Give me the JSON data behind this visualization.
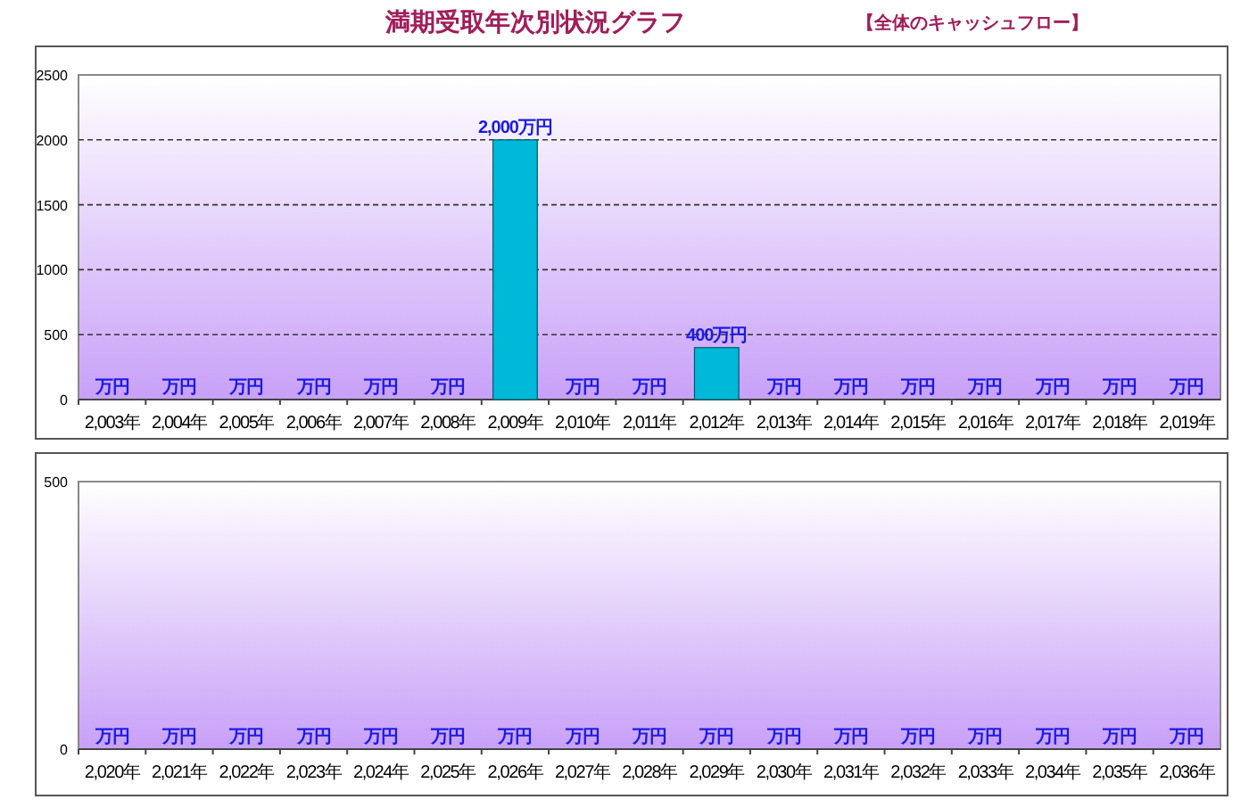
{
  "chart_data": [
    {
      "type": "bar",
      "title": "満期受取年次別状況グラフ",
      "subtitle": "【全体のキャッシュフロー】",
      "categories": [
        "2,003年",
        "2,004年",
        "2,005年",
        "2,006年",
        "2,007年",
        "2,008年",
        "2,009年",
        "2,010年",
        "2,011年",
        "2,012年",
        "2,013年",
        "2,014年",
        "2,015年",
        "2,016年",
        "2,017年",
        "2,018年",
        "2,019年"
      ],
      "values": [
        0,
        0,
        0,
        0,
        0,
        0,
        2000,
        0,
        0,
        400,
        0,
        0,
        0,
        0,
        0,
        0,
        0
      ],
      "value_labels": [
        "万円",
        "万円",
        "万円",
        "万円",
        "万円",
        "万円",
        "2,000万円",
        "万円",
        "万円",
        "400万円",
        "万円",
        "万円",
        "万円",
        "万円",
        "万円",
        "万円",
        "万円"
      ],
      "color": "#00b8d8",
      "ylim": [
        0,
        2500
      ],
      "yticks": [
        0,
        500,
        1000,
        1500,
        2000,
        2500
      ],
      "grid": "y"
    },
    {
      "type": "bar",
      "categories": [
        "2,020年",
        "2,021年",
        "2,022年",
        "2,023年",
        "2,024年",
        "2,025年",
        "2,026年",
        "2,027年",
        "2,028年",
        "2,029年",
        "2,030年",
        "2,031年",
        "2,032年",
        "2,033年",
        "2,034年",
        "2,035年",
        "2,036年"
      ],
      "values": [
        0,
        0,
        0,
        0,
        0,
        0,
        0,
        0,
        0,
        0,
        0,
        0,
        0,
        0,
        0,
        0,
        0
      ],
      "value_labels": [
        "万円",
        "万円",
        "万円",
        "万円",
        "万円",
        "万円",
        "万円",
        "万円",
        "万円",
        "万円",
        "万円",
        "万円",
        "万円",
        "万円",
        "万円",
        "万円",
        "万円"
      ],
      "color": "#00b8d8",
      "ylim": [
        0,
        500
      ],
      "yticks": [
        0,
        500
      ]
    }
  ]
}
